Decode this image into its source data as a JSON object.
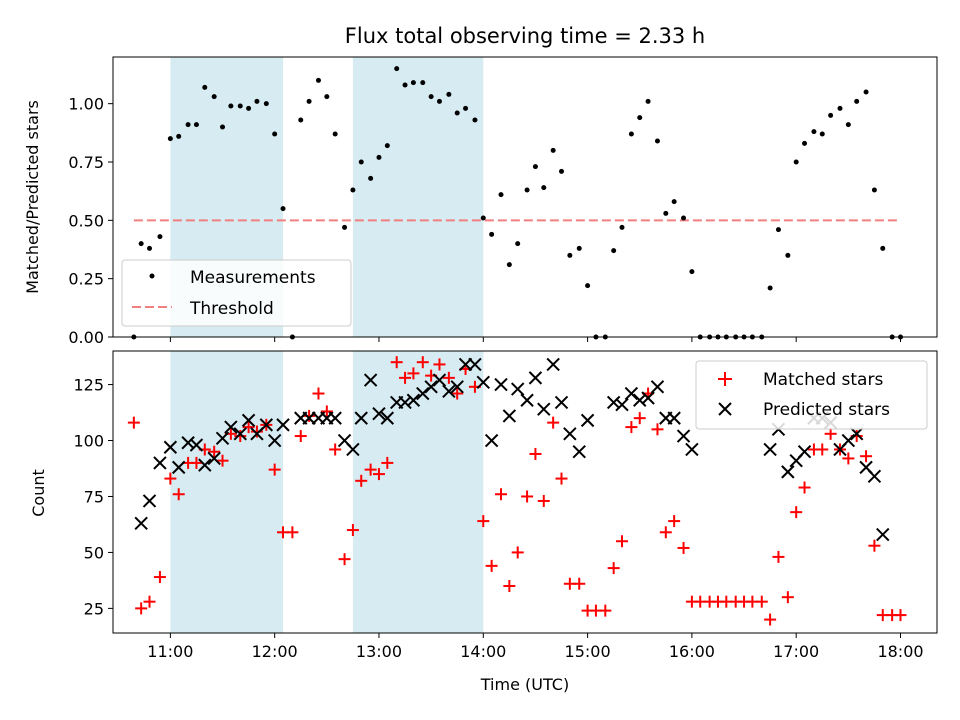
{
  "title": "Flux total observing time = 2.33 h",
  "chart_data": [
    {
      "type": "scatter",
      "ylabel": "Matched/Predicted stars",
      "xlim": [
        10.45,
        18.35
      ],
      "ylim": [
        0,
        1.2
      ],
      "yticks": [
        "0.00",
        "0.25",
        "0.50",
        "0.75",
        "1.00"
      ],
      "observing_windows": [
        [
          11.0,
          12.08
        ],
        [
          12.75,
          14.0
        ]
      ],
      "threshold": {
        "name": "Threshold",
        "value": 0.5,
        "x": [
          10.65,
          18.0
        ],
        "color": "#f08080"
      },
      "series": [
        {
          "name": "Measurements",
          "color": "#000000",
          "points": [
            [
              10.65,
              0.0
            ],
            [
              10.72,
              0.4
            ],
            [
              10.8,
              0.38
            ],
            [
              10.9,
              0.43
            ],
            [
              11.0,
              0.85
            ],
            [
              11.08,
              0.86
            ],
            [
              11.17,
              0.91
            ],
            [
              11.25,
              0.91
            ],
            [
              11.33,
              1.07
            ],
            [
              11.42,
              1.03
            ],
            [
              11.5,
              0.9
            ],
            [
              11.58,
              0.99
            ],
            [
              11.67,
              0.99
            ],
            [
              11.75,
              0.98
            ],
            [
              11.83,
              1.01
            ],
            [
              11.92,
              1.0
            ],
            [
              12.0,
              0.87
            ],
            [
              12.08,
              0.55
            ],
            [
              12.17,
              0.0
            ],
            [
              12.25,
              0.93
            ],
            [
              12.33,
              1.01
            ],
            [
              12.42,
              1.1
            ],
            [
              12.5,
              1.03
            ],
            [
              12.58,
              0.87
            ],
            [
              12.67,
              0.47
            ],
            [
              12.75,
              0.63
            ],
            [
              12.83,
              0.75
            ],
            [
              12.92,
              0.68
            ],
            [
              13.0,
              0.77
            ],
            [
              13.08,
              0.82
            ],
            [
              13.17,
              1.15
            ],
            [
              13.25,
              1.08
            ],
            [
              13.33,
              1.09
            ],
            [
              13.42,
              1.09
            ],
            [
              13.5,
              1.03
            ],
            [
              13.58,
              1.01
            ],
            [
              13.67,
              1.04
            ],
            [
              13.75,
              0.96
            ],
            [
              13.83,
              0.98
            ],
            [
              13.92,
              0.93
            ],
            [
              14.0,
              0.51
            ],
            [
              14.08,
              0.44
            ],
            [
              14.17,
              0.61
            ],
            [
              14.25,
              0.31
            ],
            [
              14.33,
              0.4
            ],
            [
              14.42,
              0.63
            ],
            [
              14.5,
              0.73
            ],
            [
              14.58,
              0.64
            ],
            [
              14.67,
              0.8
            ],
            [
              14.75,
              0.71
            ],
            [
              14.83,
              0.35
            ],
            [
              14.92,
              0.38
            ],
            [
              15.0,
              0.22
            ],
            [
              15.08,
              0.0
            ],
            [
              15.17,
              0.0
            ],
            [
              15.25,
              0.37
            ],
            [
              15.33,
              0.47
            ],
            [
              15.42,
              0.87
            ],
            [
              15.5,
              0.94
            ],
            [
              15.58,
              1.01
            ],
            [
              15.67,
              0.84
            ],
            [
              15.75,
              0.53
            ],
            [
              15.83,
              0.58
            ],
            [
              15.92,
              0.51
            ],
            [
              16.0,
              0.28
            ],
            [
              16.08,
              0.0
            ],
            [
              16.17,
              0.0
            ],
            [
              16.25,
              0.0
            ],
            [
              16.33,
              0.0
            ],
            [
              16.42,
              0.0
            ],
            [
              16.5,
              0.0
            ],
            [
              16.58,
              0.0
            ],
            [
              16.67,
              0.0
            ],
            [
              16.75,
              0.21
            ],
            [
              16.83,
              0.46
            ],
            [
              16.92,
              0.35
            ],
            [
              17.0,
              0.75
            ],
            [
              17.08,
              0.83
            ],
            [
              17.17,
              0.88
            ],
            [
              17.25,
              0.87
            ],
            [
              17.33,
              0.95
            ],
            [
              17.42,
              0.98
            ],
            [
              17.5,
              0.91
            ],
            [
              17.58,
              1.01
            ],
            [
              17.67,
              1.05
            ],
            [
              17.75,
              0.63
            ],
            [
              17.83,
              0.38
            ],
            [
              17.92,
              0.0
            ],
            [
              18.0,
              0.0
            ]
          ]
        }
      ]
    },
    {
      "type": "scatter",
      "xlabel": "Time (UTC)",
      "ylabel": "Count",
      "xlim": [
        10.45,
        18.35
      ],
      "ylim": [
        14,
        140
      ],
      "yticks": [
        "25",
        "50",
        "75",
        "100",
        "125"
      ],
      "xticks": [
        "11:00",
        "12:00",
        "13:00",
        "14:00",
        "15:00",
        "16:00",
        "17:00",
        "18:00"
      ],
      "observing_windows": [
        [
          11.0,
          12.08
        ],
        [
          12.75,
          14.0
        ]
      ],
      "series": [
        {
          "name": "Matched stars",
          "color": "#ff0000",
          "marker": "+",
          "points": [
            [
              10.65,
              108
            ],
            [
              10.72,
              25
            ],
            [
              10.8,
              28
            ],
            [
              10.9,
              39
            ],
            [
              11.0,
              83
            ],
            [
              11.08,
              76
            ],
            [
              11.17,
              90
            ],
            [
              11.25,
              90
            ],
            [
              11.33,
              96
            ],
            [
              11.42,
              95
            ],
            [
              11.5,
              91
            ],
            [
              11.58,
              103
            ],
            [
              11.67,
              102
            ],
            [
              11.75,
              106
            ],
            [
              11.83,
              104
            ],
            [
              11.92,
              107
            ],
            [
              12.0,
              87
            ],
            [
              12.08,
              59
            ],
            [
              12.17,
              59
            ],
            [
              12.25,
              102
            ],
            [
              12.33,
              111
            ],
            [
              12.42,
              121
            ],
            [
              12.5,
              113
            ],
            [
              12.58,
              96
            ],
            [
              12.67,
              47
            ],
            [
              12.75,
              60
            ],
            [
              12.83,
              82
            ],
            [
              12.92,
              87
            ],
            [
              13.0,
              85
            ],
            [
              13.08,
              90
            ],
            [
              13.17,
              135
            ],
            [
              13.25,
              128
            ],
            [
              13.33,
              130
            ],
            [
              13.42,
              135
            ],
            [
              13.5,
              129
            ],
            [
              13.58,
              134
            ],
            [
              13.67,
              128
            ],
            [
              13.75,
              121
            ],
            [
              13.83,
              132
            ],
            [
              13.92,
              124
            ],
            [
              14.0,
              64
            ],
            [
              14.08,
              44
            ],
            [
              14.17,
              76
            ],
            [
              14.25,
              35
            ],
            [
              14.33,
              50
            ],
            [
              14.42,
              75
            ],
            [
              14.5,
              94
            ],
            [
              14.58,
              73
            ],
            [
              14.67,
              108
            ],
            [
              14.75,
              83
            ],
            [
              14.83,
              36
            ],
            [
              14.92,
              36
            ],
            [
              15.0,
              24
            ],
            [
              15.08,
              24
            ],
            [
              15.17,
              24
            ],
            [
              15.25,
              43
            ],
            [
              15.33,
              55
            ],
            [
              15.42,
              106
            ],
            [
              15.5,
              110
            ],
            [
              15.58,
              121
            ],
            [
              15.67,
              105
            ],
            [
              15.75,
              59
            ],
            [
              15.83,
              64
            ],
            [
              15.92,
              52
            ],
            [
              16.0,
              28
            ],
            [
              16.08,
              28
            ],
            [
              16.17,
              28
            ],
            [
              16.25,
              28
            ],
            [
              16.33,
              28
            ],
            [
              16.42,
              28
            ],
            [
              16.5,
              28
            ],
            [
              16.58,
              28
            ],
            [
              16.67,
              28
            ],
            [
              16.75,
              20
            ],
            [
              16.83,
              48
            ],
            [
              16.92,
              30
            ],
            [
              17.0,
              68
            ],
            [
              17.08,
              79
            ],
            [
              17.17,
              96
            ],
            [
              17.25,
              96
            ],
            [
              17.33,
              103
            ],
            [
              17.42,
              96
            ],
            [
              17.5,
              92
            ],
            [
              17.58,
              102
            ],
            [
              17.67,
              93
            ],
            [
              17.75,
              53
            ],
            [
              17.83,
              22
            ],
            [
              17.92,
              22
            ],
            [
              18.0,
              22
            ]
          ]
        },
        {
          "name": "Predicted stars",
          "color": "#000000",
          "marker": "x",
          "points": [
            [
              10.72,
              63
            ],
            [
              10.8,
              73
            ],
            [
              10.9,
              90
            ],
            [
              11.0,
              97
            ],
            [
              11.08,
              88
            ],
            [
              11.17,
              99
            ],
            [
              11.25,
              98
            ],
            [
              11.33,
              89
            ],
            [
              11.42,
              92
            ],
            [
              11.5,
              101
            ],
            [
              11.58,
              106
            ],
            [
              11.67,
              103
            ],
            [
              11.75,
              109
            ],
            [
              11.83,
              103
            ],
            [
              11.92,
              107
            ],
            [
              12.0,
              100
            ],
            [
              12.08,
              107
            ],
            [
              12.25,
              110
            ],
            [
              12.33,
              110
            ],
            [
              12.42,
              110
            ],
            [
              12.5,
              110
            ],
            [
              12.58,
              110
            ],
            [
              12.67,
              100
            ],
            [
              12.75,
              96
            ],
            [
              12.83,
              110
            ],
            [
              12.92,
              127
            ],
            [
              13.0,
              112
            ],
            [
              13.08,
              110
            ],
            [
              13.17,
              117
            ],
            [
              13.25,
              117
            ],
            [
              13.33,
              118
            ],
            [
              13.42,
              121
            ],
            [
              13.5,
              124
            ],
            [
              13.58,
              127
            ],
            [
              13.67,
              122
            ],
            [
              13.75,
              124
            ],
            [
              13.83,
              134
            ],
            [
              13.92,
              134
            ],
            [
              14.0,
              126
            ],
            [
              14.08,
              100
            ],
            [
              14.17,
              125
            ],
            [
              14.25,
              111
            ],
            [
              14.33,
              123
            ],
            [
              14.42,
              118
            ],
            [
              14.5,
              128
            ],
            [
              14.58,
              114
            ],
            [
              14.67,
              134
            ],
            [
              14.75,
              117
            ],
            [
              14.83,
              103
            ],
            [
              14.92,
              95
            ],
            [
              15.0,
              109
            ],
            [
              15.25,
              117
            ],
            [
              15.33,
              116
            ],
            [
              15.42,
              121
            ],
            [
              15.5,
              118
            ],
            [
              15.58,
              119
            ],
            [
              15.67,
              124
            ],
            [
              15.75,
              110
            ],
            [
              15.83,
              110
            ],
            [
              15.92,
              102
            ],
            [
              16.0,
              96
            ],
            [
              16.75,
              96
            ],
            [
              16.83,
              105
            ],
            [
              16.92,
              86
            ],
            [
              17.0,
              91
            ],
            [
              17.08,
              95
            ],
            [
              17.17,
              110
            ],
            [
              17.25,
              110
            ],
            [
              17.33,
              108
            ],
            [
              17.42,
              96
            ],
            [
              17.5,
              100
            ],
            [
              17.58,
              103
            ],
            [
              17.67,
              88
            ],
            [
              17.75,
              84
            ],
            [
              17.83,
              58
            ]
          ]
        }
      ]
    }
  ]
}
